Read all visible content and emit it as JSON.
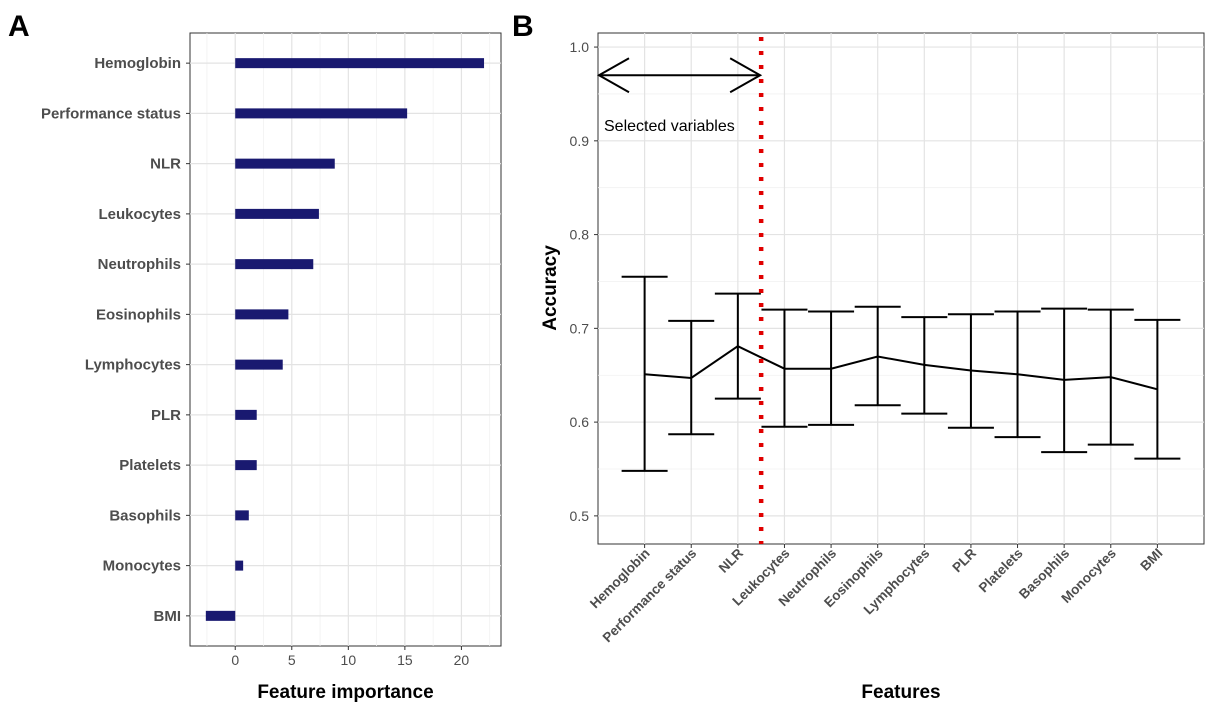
{
  "chart_data": [
    {
      "panel": "A",
      "type": "bar",
      "orientation": "horizontal",
      "categories": [
        "Hemoglobin",
        "Performance status",
        "NLR",
        "Leukocytes",
        "Neutrophils",
        "Eosinophils",
        "Lymphocytes",
        "PLR",
        "Platelets",
        "Basophils",
        "Monocytes",
        "BMI"
      ],
      "values": [
        22.0,
        15.2,
        8.8,
        7.4,
        6.9,
        4.7,
        4.2,
        1.9,
        1.9,
        1.2,
        0.7,
        -2.6
      ],
      "xlabel": "Feature importance",
      "ylabel": "",
      "xlim": [
        -4,
        23.5
      ],
      "xticks": [
        0,
        5,
        10,
        15,
        20
      ],
      "grid": true,
      "bar_color": "#191970"
    },
    {
      "panel": "B",
      "type": "line",
      "error_bars": true,
      "categories": [
        "Hemoglobin",
        "Performance status",
        "NLR",
        "Leukocytes",
        "Neutrophils",
        "Eosinophils",
        "Lymphocytes",
        "PLR",
        "Platelets",
        "Basophils",
        "Monocytes",
        "BMI"
      ],
      "values": [
        0.651,
        0.647,
        0.681,
        0.657,
        0.657,
        0.67,
        0.661,
        0.655,
        0.651,
        0.645,
        0.648,
        0.635
      ],
      "upper": [
        0.755,
        0.708,
        0.737,
        0.72,
        0.718,
        0.723,
        0.712,
        0.715,
        0.718,
        0.721,
        0.72,
        0.709
      ],
      "lower": [
        0.548,
        0.587,
        0.625,
        0.595,
        0.597,
        0.618,
        0.609,
        0.594,
        0.584,
        0.568,
        0.576,
        0.561
      ],
      "xlabel": "Features",
      "ylabel": "Accuracy",
      "ylim": [
        0.47,
        1.015
      ],
      "yticks": [
        "0.5",
        "0.6",
        "0.7",
        "0.8",
        "0.9",
        "1.0"
      ],
      "grid": true,
      "cutoff_after_index": 2,
      "cutoff_color": "#e00000",
      "annotation": "Selected variables",
      "arrow_y": 0.97
    }
  ]
}
